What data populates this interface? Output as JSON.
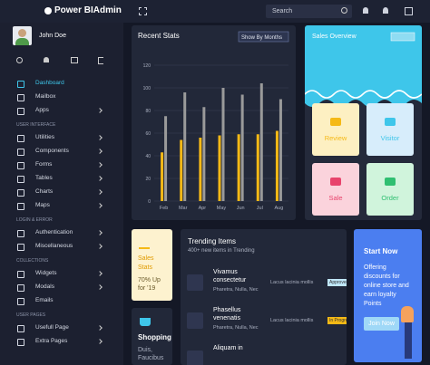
{
  "header": {
    "brand": "Power BIAdmin",
    "search_placeholder": "Search"
  },
  "sidebar": {
    "user": "John Doe",
    "menu": [
      {
        "label": "Dashboard",
        "active": true
      },
      {
        "label": "Mailbox"
      },
      {
        "label": "Apps",
        "submenu": true
      },
      {
        "heading": "USER INTERFACE"
      },
      {
        "label": "Utilities",
        "submenu": true
      },
      {
        "label": "Components",
        "submenu": true
      },
      {
        "label": "Forms",
        "submenu": true
      },
      {
        "label": "Tables",
        "submenu": true
      },
      {
        "label": "Charts",
        "submenu": true
      },
      {
        "label": "Maps",
        "submenu": true
      },
      {
        "heading": "LOGIN & ERROR"
      },
      {
        "label": "Authentication",
        "submenu": true
      },
      {
        "label": "Miscellaneous",
        "submenu": true
      },
      {
        "heading": "COLLECTIONS"
      },
      {
        "label": "Widgets",
        "submenu": true
      },
      {
        "label": "Modals",
        "submenu": true
      },
      {
        "label": "Emails"
      },
      {
        "heading": "USER PAGES"
      },
      {
        "label": "Usefull Page",
        "submenu": true
      },
      {
        "label": "Extra Pages",
        "submenu": true
      }
    ]
  },
  "chart_data": {
    "type": "bar",
    "title": "Recent Stats",
    "filter": "Show By Months",
    "categories": [
      "Feb",
      "Mar",
      "Apr",
      "May",
      "Jun",
      "Jul",
      "Aug"
    ],
    "series": [
      {
        "color": "#f5b916",
        "values": [
          43,
          54,
          56,
          58,
          59,
          59,
          62
        ]
      },
      {
        "color": "#9a9a9a",
        "values": [
          75,
          96,
          83,
          100,
          94,
          104,
          90
        ]
      }
    ],
    "ylim": [
      0,
      120
    ],
    "yticks": [
      0,
      20,
      40,
      60,
      80,
      100,
      120
    ],
    "grid": true
  },
  "sales_overview": {
    "title": "Sales Overview",
    "tiles": [
      "Review",
      "Visitor",
      "Sale",
      "Order"
    ]
  },
  "sales_stats": {
    "title": "Sales Stats",
    "text": "70% Up for '19"
  },
  "shopping": {
    "title": "Shopping",
    "text": "Duis, Faucibus"
  },
  "trending": {
    "title": "Trending Items",
    "subtitle": "400+ new items in Trending",
    "rows": [
      {
        "name": "Vivamus consectetur",
        "tags": "Pharetra, Nulla, Nec",
        "desc": "Lacus lacinia mollis",
        "status": "Approved"
      },
      {
        "name": "Phasellus venenatis",
        "tags": "Pharetra, Nulla, Nec",
        "desc": "Lacus lacinia mollis",
        "status": "In Progress"
      },
      {
        "name": "Aliquam in"
      }
    ]
  },
  "promo": {
    "title": "Start Now",
    "text": "Offering discounts for online store and earn loyalty Points",
    "button": "Join Now"
  }
}
